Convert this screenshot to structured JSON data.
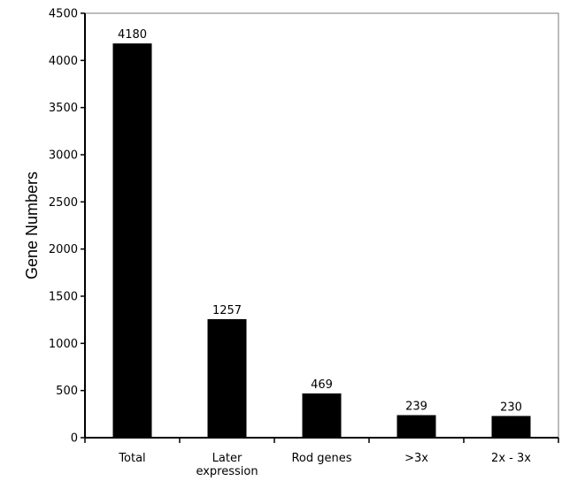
{
  "chart_data": {
    "type": "bar",
    "title": "",
    "xlabel": "",
    "ylabel": "Gene Numbers",
    "categories": [
      [
        "Total"
      ],
      [
        "Later",
        "expression"
      ],
      [
        "Rod genes"
      ],
      [
        ">3x"
      ],
      [
        "2x - 3x"
      ]
    ],
    "values": [
      4180,
      1257,
      469,
      239,
      230
    ],
    "data_labels": [
      "4180",
      "1257",
      "469",
      "239",
      "230"
    ],
    "ylim": [
      0,
      4500
    ],
    "yticks": [
      0,
      500,
      1000,
      1500,
      2000,
      2500,
      3000,
      3500,
      4000,
      4500
    ],
    "grid": false,
    "legend": "none",
    "bar_color": "#000000"
  }
}
